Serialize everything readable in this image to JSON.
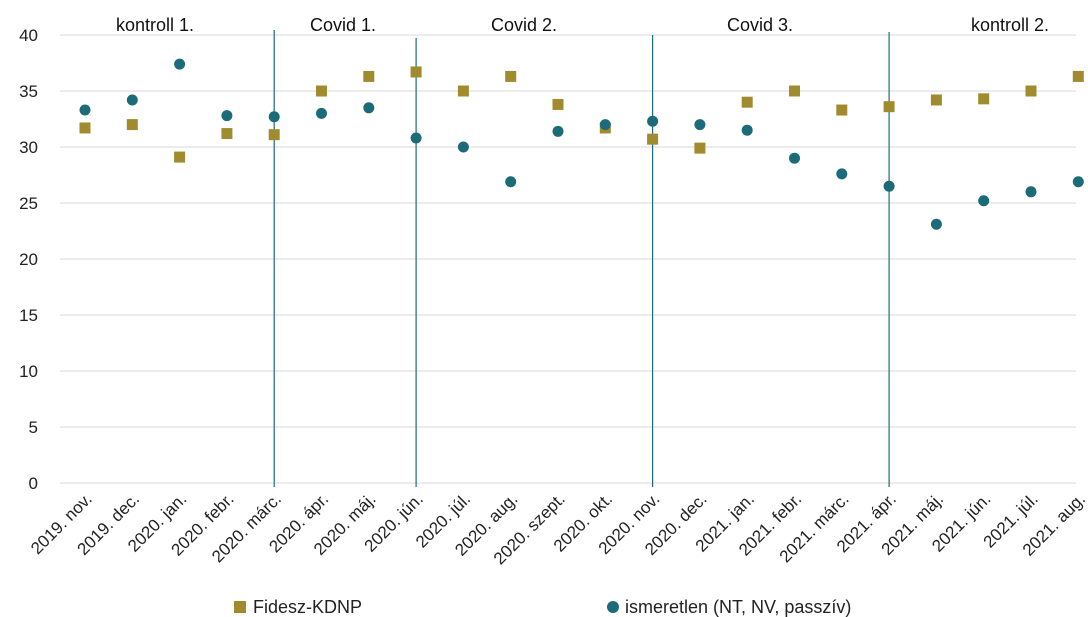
{
  "chart_data": {
    "type": "scatter",
    "categories": [
      "2019. nov.",
      "2019. dec.",
      "2020. jan.",
      "2020. febr.",
      "2020. márc.",
      "2020. ápr.",
      "2020. máj.",
      "2020. jún.",
      "2020. júl.",
      "2020. aug.",
      "2020. szept.",
      "2020. okt.",
      "2020. nov.",
      "2020. dec.",
      "2021. jan.",
      "2021. febr.",
      "2021. márc.",
      "2021. ápr.",
      "2021. máj.",
      "2021. jún.",
      "2021. júl.",
      "2021. aug."
    ],
    "series": [
      {
        "name": "Fidesz-KDNP",
        "marker": "square",
        "color": "#A08B2E",
        "values": [
          31.7,
          32.0,
          29.1,
          31.2,
          31.1,
          35.0,
          36.3,
          36.7,
          35.0,
          36.3,
          33.8,
          31.7,
          30.7,
          29.9,
          34.0,
          35.0,
          33.3,
          33.6,
          34.2,
          34.3,
          35.0,
          36.3
        ]
      },
      {
        "name": "ismeretlen (NT, NV, passzív)",
        "marker": "circle",
        "color": "#1B6B78",
        "values": [
          33.3,
          34.2,
          37.4,
          32.8,
          32.7,
          33.0,
          33.5,
          30.8,
          30.0,
          26.9,
          31.4,
          32.0,
          32.3,
          32.0,
          31.5,
          29.0,
          27.6,
          26.5,
          23.1,
          25.2,
          26.0,
          26.9
        ]
      }
    ],
    "yticks": [
      "0",
      "5",
      "10",
      "15",
      "20",
      "25",
      "30",
      "35",
      "40"
    ],
    "ylim": [
      0,
      40
    ],
    "grid": true,
    "legend_position": "bottom",
    "phases": [
      {
        "label": "kontroll 1."
      },
      {
        "label": "Covid 1."
      },
      {
        "label": "Covid 2."
      },
      {
        "label": "Covid 3."
      },
      {
        "label": "kontroll 2."
      }
    ],
    "phase_divider_after_categories": [
      "2020. márc.",
      "2020. jún.",
      "2020. nov.",
      "2021. ápr."
    ],
    "divider_color": "#1B6B78",
    "grid_color": "#D9D9D9"
  }
}
